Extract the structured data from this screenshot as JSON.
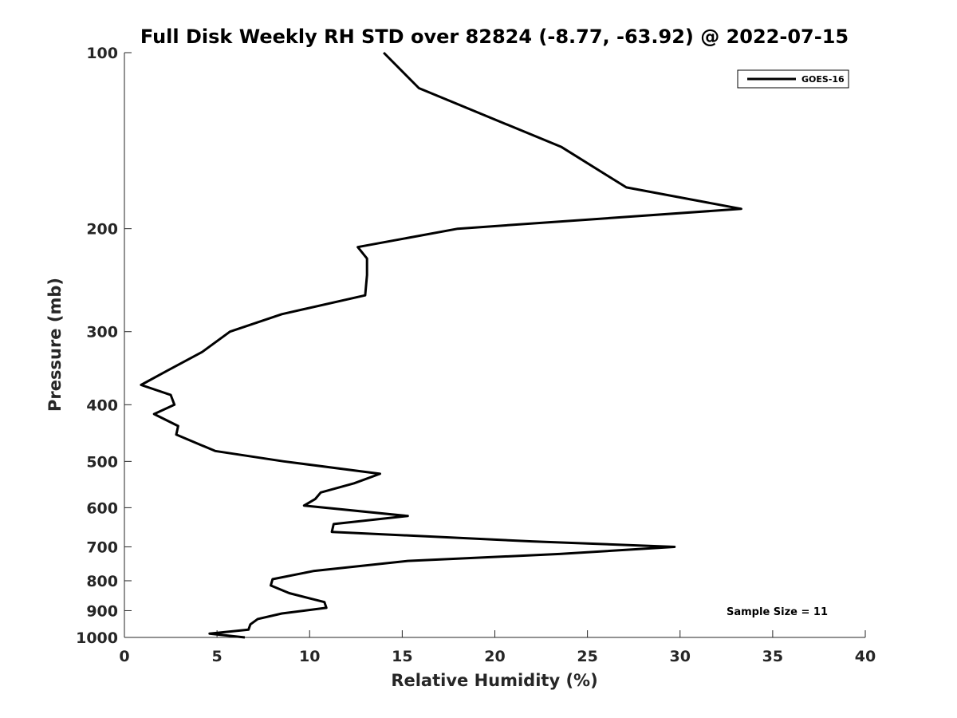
{
  "chart_data": {
    "type": "line",
    "title": "Full Disk Weekly RH STD over 82824 (-8.77, -63.92) @ 2022-07-15",
    "xlabel": "Relative Humidity (%)",
    "ylabel": "Pressure (mb)",
    "xlim": [
      0,
      40
    ],
    "ylim": [
      100,
      1000
    ],
    "yscale": "log",
    "yaxis_reversed": true,
    "x_ticks": [
      0,
      5,
      10,
      15,
      20,
      25,
      30,
      35,
      40
    ],
    "y_ticks": [
      100,
      200,
      300,
      400,
      500,
      600,
      700,
      800,
      900,
      1000
    ],
    "grid": false,
    "legend_position": "top-right",
    "series": [
      {
        "name": "GOES-16",
        "color": "#000000",
        "x": [
          14.0,
          15.9,
          23.6,
          27.1,
          33.3,
          18.0,
          12.6,
          13.1,
          13.1,
          13.0,
          8.5,
          5.7,
          4.2,
          2.3,
          0.9,
          2.5,
          2.7,
          1.6,
          2.9,
          2.8,
          4.9,
          8.6,
          13.8,
          12.4,
          10.6,
          10.3,
          9.7,
          15.3,
          11.3,
          11.2,
          22.0,
          29.7,
          23.5,
          15.3,
          10.2,
          8.0,
          7.9,
          8.9,
          10.8,
          10.9,
          8.5,
          7.2,
          6.8,
          6.7,
          4.6,
          6.5
        ],
        "y": [
          100,
          115,
          145,
          170,
          185,
          200,
          215,
          225,
          240,
          260,
          280,
          300,
          325,
          350,
          370,
          385,
          400,
          415,
          435,
          450,
          480,
          500,
          525,
          545,
          565,
          580,
          595,
          620,
          640,
          660,
          685,
          700,
          720,
          740,
          770,
          795,
          815,
          840,
          870,
          890,
          910,
          930,
          950,
          970,
          985,
          1000
        ]
      }
    ],
    "annotations": [
      {
        "text": "Sample Size = 11"
      }
    ]
  }
}
